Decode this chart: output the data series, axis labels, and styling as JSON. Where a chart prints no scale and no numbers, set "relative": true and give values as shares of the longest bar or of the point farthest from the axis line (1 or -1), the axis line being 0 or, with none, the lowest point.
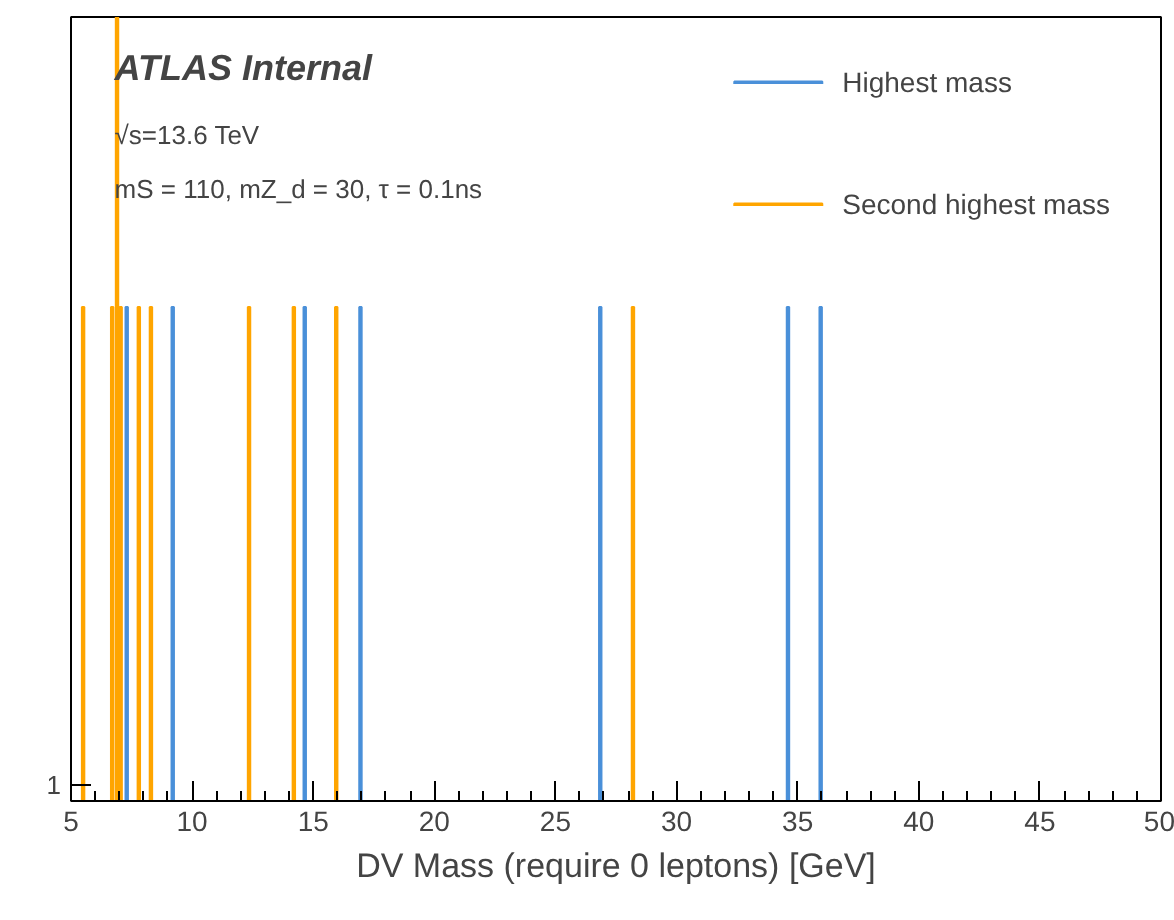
{
  "chart_data": {
    "type": "bar",
    "title": "ATLAS Internal",
    "xlabel": "DV Mass (require 0 leptons) [GeV]",
    "annotations": [
      "√s=13.6 TeV",
      "mS = 110, mZ_d = 30, τ = 0.1ns",
      "1"
    ],
    "relative": true,
    "xlim": [
      5,
      50
    ],
    "xticks": [
      5,
      10,
      15,
      20,
      25,
      30,
      35,
      40,
      45,
      50
    ],
    "legend": "top right",
    "series": [
      {
        "name": "Highest mass",
        "color": "#4a90d9",
        "x": [
          7.3,
          9.2,
          14.65,
          16.95,
          26.85,
          34.6,
          35.95
        ],
        "values": [
          0.63,
          0.63,
          0.63,
          0.63,
          0.63,
          0.63,
          0.63
        ]
      },
      {
        "name": "Second highest mass",
        "color": "#ffa500",
        "x": [
          5.5,
          6.7,
          6.9,
          7.05,
          7.8,
          8.3,
          12.35,
          14.2,
          15.95,
          28.2
        ],
        "values": [
          0.63,
          0.63,
          1,
          0.63,
          0.63,
          0.63,
          0.63,
          0.63,
          0.63,
          0.63
        ]
      }
    ]
  }
}
